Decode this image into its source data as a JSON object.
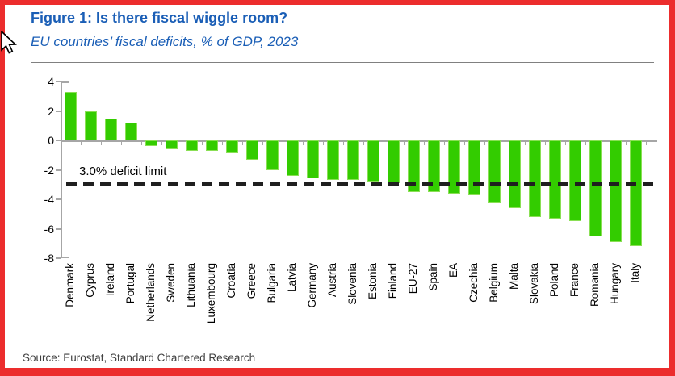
{
  "figure": {
    "title": "Figure 1: Is there fiscal wiggle room?",
    "subtitle": "EU countries’ fiscal deficits, % of GDP, 2023",
    "source": "Source: Eurostat, Standard Chartered Research"
  },
  "colors": {
    "frame_red": "#EC2D2D",
    "title_blue": "#1A5EB6",
    "bar_green": "#33CC00",
    "axis_gray": "#A6A6A6",
    "dash_line_black": "#1F1F1F"
  },
  "icons": {
    "cursor": "mouse-pointer-icon"
  },
  "chart_data": {
    "type": "bar",
    "title": "Figure 1: Is there fiscal wiggle room?",
    "subtitle": "EU countries’ fiscal deficits, % of GDP, 2023",
    "xlabel": "",
    "ylabel": "% of GDP",
    "ylim": [
      -8,
      4
    ],
    "yticks": [
      4,
      2,
      0,
      -2,
      -4,
      -6,
      -8
    ],
    "grid": false,
    "legend": "none",
    "bar_color": "#33CC00",
    "categories": [
      "Denmark",
      "Cyprus",
      "Ireland",
      "Portugal",
      "Netherlands",
      "Sweden",
      "Lithuania",
      "Luxembourg",
      "Croatia",
      "Greece",
      "Bulgaria",
      "Latvia",
      "Germany",
      "Austria",
      "Slovenia",
      "Estonia",
      "Finland",
      "EU-27",
      "Spain",
      "EA",
      "Czechia",
      "Belgium",
      "Malta",
      "Slovakia",
      "Poland",
      "France",
      "Romania",
      "Hungary",
      "Italy"
    ],
    "values": [
      3.3,
      2.0,
      1.5,
      1.2,
      -0.4,
      -0.6,
      -0.7,
      -0.7,
      -0.9,
      -1.3,
      -2.0,
      -2.4,
      -2.6,
      -2.7,
      -2.7,
      -2.8,
      -2.9,
      -3.5,
      -3.5,
      -3.6,
      -3.7,
      -4.2,
      -4.6,
      -5.2,
      -5.3,
      -5.5,
      -6.5,
      -6.9,
      -7.2
    ],
    "reference_line": {
      "value": -3.0,
      "label": "3.0% deficit limit",
      "style": "dashed"
    }
  }
}
